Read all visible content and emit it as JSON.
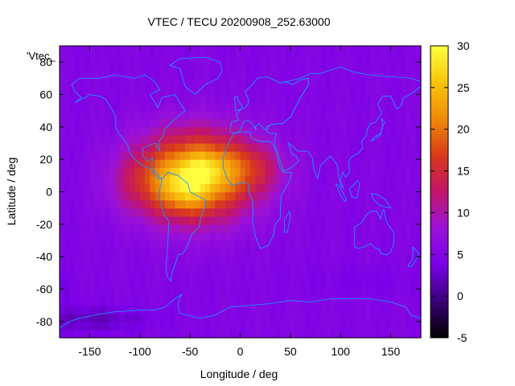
{
  "chart_data": {
    "type": "heatmap",
    "title": "VTEC / TECU 20200908_252.63000",
    "xlabel": "Longitude / deg",
    "ylabel": "Latitude / deg",
    "legend_label": "'Vtec_",
    "legend_position": "top-left",
    "colorbar_position": "right",
    "grid": false,
    "xlim": [
      -180,
      180
    ],
    "ylim": [
      -90,
      90
    ],
    "x_ticks": [
      -150,
      -100,
      -50,
      0,
      50,
      100,
      150
    ],
    "y_ticks": [
      -80,
      -60,
      -40,
      -20,
      0,
      20,
      40,
      60,
      80
    ],
    "colorbar": {
      "min": -5,
      "max": 30,
      "ticks": [
        -5,
        0,
        5,
        10,
        15,
        20,
        25,
        30
      ],
      "colors": [
        "#000000",
        "#3b0077",
        "#7a00e8",
        "#9a12d9",
        "#c2156a",
        "#d83a1a",
        "#ef8a0a",
        "#f9c40c",
        "#ffff40"
      ]
    },
    "background_value": 5,
    "overlay": {
      "name": "coastlines",
      "color": "#1e90ff"
    },
    "features": [
      {
        "lon": -45,
        "lat": 10,
        "amp": 20,
        "sx": 58,
        "sy": 27
      },
      {
        "lon": -55,
        "lat": 2,
        "amp": 6,
        "sx": 25,
        "sy": 14
      },
      {
        "lon": -35,
        "lat": 15,
        "amp": 4,
        "sx": 20,
        "sy": 10
      },
      {
        "lon": 10,
        "lat": 15,
        "amp": 5,
        "sx": 35,
        "sy": 15
      },
      {
        "lon": -100,
        "lat": 5,
        "amp": 3,
        "sx": 30,
        "sy": 18
      },
      {
        "lon": -150,
        "lat": -78,
        "amp": -3,
        "sx": 60,
        "sy": 8
      },
      {
        "lon": -180,
        "lat": -58,
        "amp": -1.5,
        "sx": 15,
        "sy": 8
      },
      {
        "lon": 120,
        "lat": -55,
        "amp": -1,
        "sx": 60,
        "sy": 10
      }
    ]
  }
}
